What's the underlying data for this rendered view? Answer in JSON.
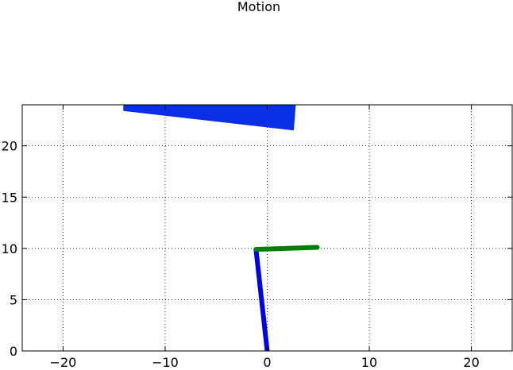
{
  "chart_data": {
    "type": "line",
    "title": "Motion",
    "xlabel": "",
    "ylabel": "",
    "xlim": [
      -24,
      24
    ],
    "ylim": [
      0,
      24
    ],
    "grid": true,
    "x_ticks": [
      {
        "value": -20,
        "label": "−20"
      },
      {
        "value": -10,
        "label": "−10"
      },
      {
        "value": 0,
        "label": "0"
      },
      {
        "value": 10,
        "label": "10"
      },
      {
        "value": 20,
        "label": "20"
      }
    ],
    "y_ticks": [
      {
        "value": 0,
        "label": "0"
      },
      {
        "value": 5,
        "label": "5"
      },
      {
        "value": 10,
        "label": "10"
      },
      {
        "value": 15,
        "label": "15"
      },
      {
        "value": 20,
        "label": "20"
      }
    ],
    "shapes": [
      {
        "kind": "polygon",
        "color": "#0a2ee6",
        "points": [
          [
            -14.1,
            24
          ],
          [
            2.8,
            24
          ],
          [
            2.6,
            21.5
          ],
          [
            -14.1,
            23.4
          ]
        ]
      },
      {
        "kind": "segment",
        "color": "#0000ee",
        "points": [
          [
            0.0,
            0.0
          ],
          [
            -1.1,
            9.9
          ]
        ]
      },
      {
        "kind": "segment",
        "color": "#008000",
        "points": [
          [
            -1.1,
            9.9
          ],
          [
            4.9,
            10.1
          ]
        ]
      }
    ]
  }
}
